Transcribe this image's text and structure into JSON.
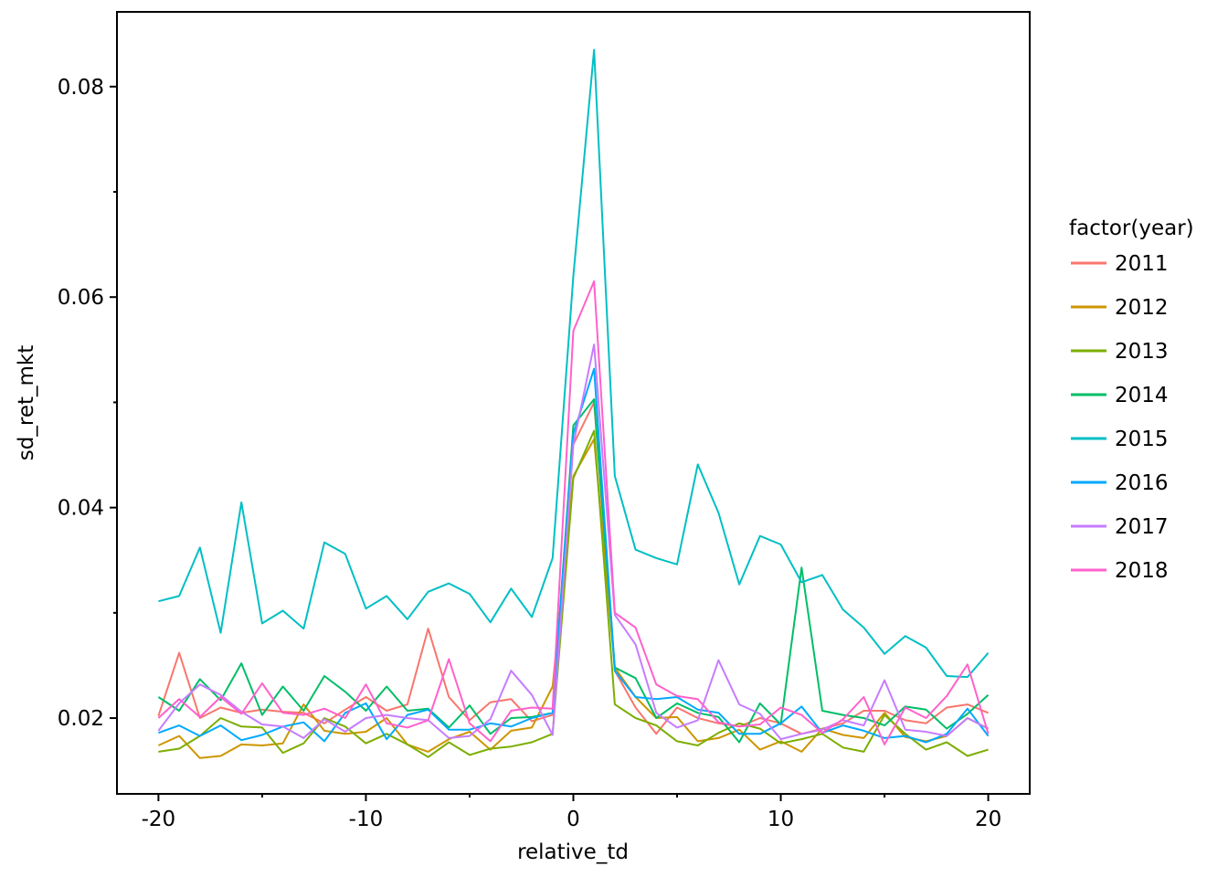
{
  "chart_data": {
    "type": "line",
    "xlabel": "relative_td",
    "ylabel": "sd_ret_mkt",
    "xlim": [
      -22,
      22
    ],
    "ylim": [
      0.0128,
      0.0871
    ],
    "x_ticks": [
      -20,
      -10,
      0,
      10,
      20
    ],
    "x_tick_labels": [
      "-20",
      "-10",
      "0",
      "10",
      "20"
    ],
    "x_minor_ticks": [
      -15,
      -5,
      5,
      15
    ],
    "y_ticks": [
      0.02,
      0.04,
      0.06,
      0.08
    ],
    "y_tick_labels": [
      "0.02",
      "0.04",
      "0.06",
      "0.08"
    ],
    "y_minor_ticks": [
      0.03,
      0.05,
      0.07
    ],
    "grid": false,
    "legend": {
      "title": "factor(year)",
      "position": "right"
    },
    "x": [
      -20,
      -19,
      -18,
      -17,
      -16,
      -15,
      -14,
      -13,
      -12,
      -11,
      -10,
      -9,
      -8,
      -7,
      -6,
      -5,
      -4,
      -3,
      -2,
      -1,
      0,
      1,
      2,
      3,
      4,
      5,
      6,
      7,
      8,
      9,
      10,
      11,
      12,
      13,
      14,
      15,
      16,
      17,
      18,
      19,
      20
    ],
    "series": [
      {
        "name": "2011",
        "color": "#F8766D",
        "values": [
          0.0202,
          0.0262,
          0.02,
          0.021,
          0.0205,
          0.0208,
          0.0206,
          0.0205,
          0.0195,
          0.0208,
          0.022,
          0.0207,
          0.0213,
          0.0285,
          0.022,
          0.0198,
          0.0215,
          0.0218,
          0.0197,
          0.0203,
          0.046,
          0.05,
          0.0245,
          0.021,
          0.0185,
          0.021,
          0.02,
          0.0195,
          0.0192,
          0.02,
          0.0195,
          0.0185,
          0.019,
          0.0195,
          0.0207,
          0.0207,
          0.0198,
          0.0195,
          0.021,
          0.0213,
          0.0205
        ]
      },
      {
        "name": "2012",
        "color": "#CD9600",
        "values": [
          0.0174,
          0.0183,
          0.0162,
          0.0164,
          0.0175,
          0.0174,
          0.0176,
          0.0213,
          0.0188,
          0.0185,
          0.0187,
          0.02,
          0.0175,
          0.0168,
          0.018,
          0.0187,
          0.017,
          0.0188,
          0.0191,
          0.023,
          0.043,
          0.0465,
          0.0248,
          0.022,
          0.02,
          0.0201,
          0.0178,
          0.0181,
          0.0189,
          0.017,
          0.0178,
          0.0168,
          0.019,
          0.0184,
          0.0181,
          0.0205,
          0.0182,
          0.0178,
          0.0183,
          0.02,
          0.019
        ]
      },
      {
        "name": "2013",
        "color": "#7CAE00",
        "values": [
          0.0168,
          0.0171,
          0.0183,
          0.02,
          0.0192,
          0.0191,
          0.0167,
          0.0176,
          0.02,
          0.0192,
          0.0176,
          0.0185,
          0.0175,
          0.0163,
          0.0177,
          0.0165,
          0.0171,
          0.0173,
          0.0177,
          0.0185,
          0.0428,
          0.0473,
          0.0213,
          0.02,
          0.0193,
          0.0178,
          0.0174,
          0.0186,
          0.0195,
          0.019,
          0.0176,
          0.018,
          0.0185,
          0.0172,
          0.0168,
          0.0203,
          0.0185,
          0.017,
          0.0177,
          0.0164,
          0.017
        ]
      },
      {
        "name": "2014",
        "color": "#00BE67",
        "values": [
          0.022,
          0.0207,
          0.0237,
          0.0217,
          0.0252,
          0.0203,
          0.023,
          0.0207,
          0.024,
          0.0225,
          0.0207,
          0.023,
          0.0207,
          0.0209,
          0.0191,
          0.0212,
          0.0185,
          0.02,
          0.0201,
          0.0205,
          0.0478,
          0.0503,
          0.0248,
          0.0238,
          0.02,
          0.0214,
          0.0205,
          0.0201,
          0.0177,
          0.0214,
          0.0194,
          0.0343,
          0.0207,
          0.0203,
          0.02,
          0.0193,
          0.0211,
          0.0208,
          0.019,
          0.0204,
          0.0222
        ]
      },
      {
        "name": "2015",
        "color": "#00BFC4",
        "values": [
          0.0311,
          0.0316,
          0.0362,
          0.0281,
          0.0405,
          0.029,
          0.0302,
          0.0285,
          0.0367,
          0.0356,
          0.0304,
          0.0316,
          0.0294,
          0.032,
          0.0328,
          0.0318,
          0.0291,
          0.0323,
          0.0296,
          0.0352,
          0.062,
          0.0835,
          0.043,
          0.036,
          0.0352,
          0.0346,
          0.0441,
          0.0395,
          0.0327,
          0.0373,
          0.0365,
          0.0329,
          0.0336,
          0.0303,
          0.0286,
          0.0261,
          0.0278,
          0.0267,
          0.024,
          0.0239,
          0.0262
        ]
      },
      {
        "name": "2016",
        "color": "#00A9FF",
        "values": [
          0.0186,
          0.0193,
          0.0183,
          0.0193,
          0.0179,
          0.0184,
          0.0192,
          0.0196,
          0.0178,
          0.0205,
          0.0214,
          0.018,
          0.0203,
          0.0208,
          0.0189,
          0.0189,
          0.0195,
          0.0192,
          0.02,
          0.0205,
          0.047,
          0.0532,
          0.0245,
          0.022,
          0.0218,
          0.022,
          0.0208,
          0.0205,
          0.0185,
          0.0185,
          0.0195,
          0.0211,
          0.0186,
          0.0193,
          0.0188,
          0.0181,
          0.0183,
          0.0177,
          0.0185,
          0.0209,
          0.0183
        ]
      },
      {
        "name": "2017",
        "color": "#C77CFF",
        "values": [
          0.0188,
          0.0214,
          0.0232,
          0.0222,
          0.0206,
          0.0194,
          0.0192,
          0.0181,
          0.0199,
          0.0187,
          0.02,
          0.0203,
          0.02,
          0.0198,
          0.0181,
          0.0183,
          0.0199,
          0.0245,
          0.0222,
          0.0184,
          0.046,
          0.0555,
          0.0298,
          0.027,
          0.0205,
          0.0191,
          0.0198,
          0.0255,
          0.0213,
          0.0204,
          0.018,
          0.0185,
          0.0189,
          0.0198,
          0.0193,
          0.0236,
          0.0189,
          0.0187,
          0.0183,
          0.02,
          0.019
        ]
      },
      {
        "name": "2018",
        "color": "#FF61CC",
        "values": [
          0.02,
          0.0218,
          0.0201,
          0.022,
          0.0204,
          0.0233,
          0.0205,
          0.0203,
          0.0209,
          0.02,
          0.0232,
          0.0195,
          0.0191,
          0.0198,
          0.0256,
          0.0195,
          0.0178,
          0.0207,
          0.021,
          0.0209,
          0.0568,
          0.0615,
          0.03,
          0.0286,
          0.0232,
          0.0221,
          0.0218,
          0.0196,
          0.0192,
          0.0194,
          0.021,
          0.0203,
          0.0186,
          0.0199,
          0.022,
          0.0175,
          0.021,
          0.02,
          0.0221,
          0.0251,
          0.0185
        ]
      }
    ]
  }
}
